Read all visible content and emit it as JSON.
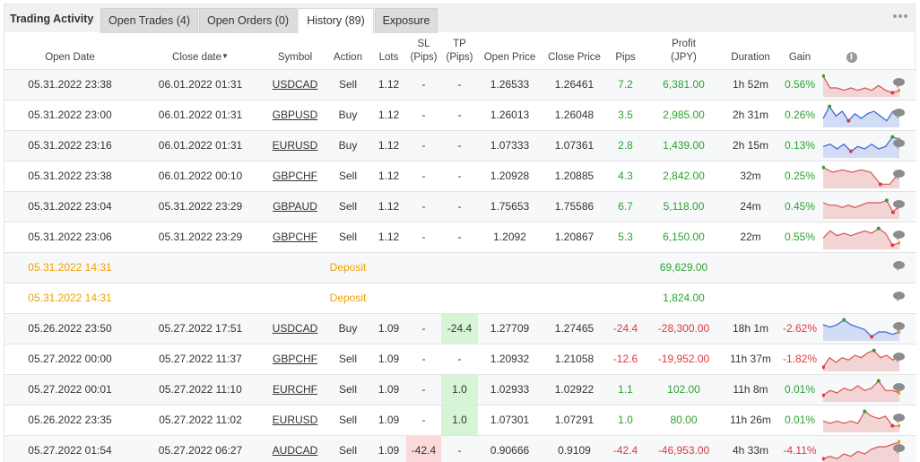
{
  "tabs": {
    "title": "Trading Activity",
    "items": [
      {
        "label": "Open Trades (4)"
      },
      {
        "label": "Open Orders (0)"
      },
      {
        "label": "History (89)"
      },
      {
        "label": "Exposure"
      }
    ],
    "active_index": 2
  },
  "headers": {
    "open_date": "Open Date",
    "close_date": "Close date",
    "symbol": "Symbol",
    "action": "Action",
    "lots": "Lots",
    "sl_1": "SL",
    "sl_2": "(Pips)",
    "tp_1": "TP",
    "tp_2": "(Pips)",
    "open_price": "Open Price",
    "close_price": "Close Price",
    "pips": "Pips",
    "profit_1": "Profit",
    "profit_2": "(JPY)",
    "duration": "Duration",
    "gain": "Gain",
    "info_glyph": "i"
  },
  "colors": {
    "profit_positive": "#2da12f",
    "profit_negative": "#e0383e",
    "deposit": "#f0a000",
    "spark_red_line": "#d9534f",
    "spark_red_fill": "#f2d4d4",
    "spark_blue_line": "#3b5fd6",
    "spark_blue_fill": "#d3dcf5"
  },
  "rows": [
    {
      "type": "trade",
      "open_date": "05.31.2022 23:38",
      "close_date": "06.01.2022 01:31",
      "symbol": "USDCAD",
      "action": "Sell",
      "lots": "1.12",
      "sl": "-",
      "tp": "-",
      "open_price": "1.26533",
      "close_price": "1.26461",
      "pips": "7.2",
      "profit": "6,381.00",
      "duration": "1h 52m",
      "gain": "0.56%",
      "positive": true,
      "spark": {
        "color": "red",
        "values": [
          8,
          3,
          3,
          2,
          3,
          2,
          3,
          2,
          4,
          2,
          1,
          2
        ]
      }
    },
    {
      "type": "trade",
      "open_date": "05.31.2022 23:00",
      "close_date": "06.01.2022 01:31",
      "symbol": "GBPUSD",
      "action": "Buy",
      "lots": "1.12",
      "sl": "-",
      "tp": "-",
      "open_price": "1.26013",
      "close_price": "1.26048",
      "pips": "3.5",
      "profit": "2,985.00",
      "duration": "2h 31m",
      "gain": "0.26%",
      "positive": true,
      "spark": {
        "color": "blue",
        "values": [
          3,
          8,
          4,
          6,
          2,
          5,
          3,
          5,
          6,
          4,
          2,
          6,
          6
        ]
      }
    },
    {
      "type": "trade",
      "open_date": "05.31.2022 23:16",
      "close_date": "06.01.2022 01:31",
      "symbol": "EURUSD",
      "action": "Buy",
      "lots": "1.12",
      "sl": "-",
      "tp": "-",
      "open_price": "1.07333",
      "close_price": "1.07361",
      "pips": "2.8",
      "profit": "1,439.00",
      "duration": "2h 15m",
      "gain": "0.13%",
      "positive": true,
      "spark": {
        "color": "blue",
        "values": [
          4,
          5,
          3,
          5,
          2,
          4,
          3,
          5,
          3,
          4,
          8,
          7
        ]
      }
    },
    {
      "type": "trade",
      "open_date": "05.31.2022 23:38",
      "close_date": "06.01.2022 00:10",
      "symbol": "GBPCHF",
      "action": "Sell",
      "lots": "1.12",
      "sl": "-",
      "tp": "-",
      "open_price": "1.20928",
      "close_price": "1.20885",
      "pips": "4.3",
      "profit": "2,842.00",
      "duration": "32m",
      "gain": "0.25%",
      "positive": true,
      "spark": {
        "color": "red",
        "values": [
          8,
          6,
          7,
          6,
          7,
          6,
          1,
          1,
          6
        ]
      }
    },
    {
      "type": "trade",
      "open_date": "05.31.2022 23:04",
      "close_date": "05.31.2022 23:29",
      "symbol": "GBPAUD",
      "action": "Sell",
      "lots": "1.12",
      "sl": "-",
      "tp": "-",
      "open_price": "1.75653",
      "close_price": "1.75586",
      "pips": "6.7",
      "profit": "5,118.00",
      "duration": "24m",
      "gain": "0.45%",
      "positive": true,
      "spark": {
        "color": "red",
        "values": [
          6,
          5,
          5,
          4,
          5,
          4,
          5,
          6,
          6,
          6,
          7,
          2,
          5
        ]
      }
    },
    {
      "type": "trade",
      "open_date": "05.31.2022 23:06",
      "close_date": "05.31.2022 23:29",
      "symbol": "GBPCHF",
      "action": "Sell",
      "lots": "1.12",
      "sl": "-",
      "tp": "-",
      "open_price": "1.2092",
      "close_price": "1.20867",
      "pips": "5.3",
      "profit": "6,150.00",
      "duration": "22m",
      "gain": "0.55%",
      "positive": true,
      "spark": {
        "color": "red",
        "values": [
          4,
          7,
          5,
          6,
          5,
          6,
          7,
          6,
          8,
          6,
          1,
          2
        ]
      }
    },
    {
      "type": "deposit",
      "open_date": "05.31.2022 14:31",
      "action": "Deposit",
      "profit": "69,629.00"
    },
    {
      "type": "deposit",
      "open_date": "05.31.2022 14:31",
      "action": "Deposit",
      "profit": "1,824.00"
    },
    {
      "type": "trade",
      "open_date": "05.26.2022 23:50",
      "close_date": "05.27.2022 17:51",
      "symbol": "USDCAD",
      "action": "Buy",
      "lots": "1.09",
      "sl": "-",
      "tp": "-24.4",
      "tp_hl": "green",
      "open_price": "1.27709",
      "close_price": "1.27465",
      "pips": "-24.4",
      "profit": "-28,300.00",
      "duration": "18h 1m",
      "gain": "-2.62%",
      "positive": false,
      "spark": {
        "color": "blue",
        "values": [
          6,
          5,
          6,
          8,
          6,
          5,
          4,
          1,
          3,
          3,
          2,
          3
        ]
      }
    },
    {
      "type": "trade",
      "open_date": "05.27.2022 00:00",
      "close_date": "05.27.2022 11:37",
      "symbol": "GBPCHF",
      "action": "Sell",
      "lots": "1.09",
      "sl": "-",
      "tp": "-",
      "open_price": "1.20932",
      "close_price": "1.21058",
      "pips": "-12.6",
      "profit": "-19,952.00",
      "duration": "11h 37m",
      "gain": "-1.82%",
      "positive": false,
      "spark": {
        "color": "red",
        "values": [
          1,
          5,
          3,
          5,
          4,
          6,
          5,
          7,
          8,
          5,
          6,
          4,
          6
        ]
      }
    },
    {
      "type": "trade",
      "open_date": "05.27.2022 00:01",
      "close_date": "05.27.2022 11:10",
      "symbol": "EURCHF",
      "action": "Sell",
      "lots": "1.09",
      "sl": "-",
      "tp": "1.0",
      "tp_hl": "green",
      "open_price": "1.02933",
      "close_price": "1.02922",
      "pips": "1.1",
      "profit": "102.00",
      "duration": "11h 8m",
      "gain": "0.01%",
      "positive": true,
      "spark": {
        "color": "red",
        "values": [
          2,
          4,
          3,
          5,
          4,
          6,
          4,
          5,
          8,
          4,
          4,
          3
        ]
      }
    },
    {
      "type": "trade",
      "open_date": "05.26.2022 23:35",
      "close_date": "05.27.2022 11:02",
      "symbol": "EURUSD",
      "action": "Sell",
      "lots": "1.09",
      "sl": "-",
      "tp": "1.0",
      "tp_hl": "green",
      "open_price": "1.07301",
      "close_price": "1.07291",
      "pips": "1.0",
      "profit": "80.00",
      "duration": "11h 26m",
      "gain": "0.01%",
      "positive": true,
      "spark": {
        "color": "red",
        "values": [
          4,
          3,
          4,
          3,
          4,
          3,
          8,
          6,
          5,
          6,
          2,
          2
        ]
      }
    },
    {
      "type": "trade",
      "open_date": "05.27.2022 01:54",
      "close_date": "05.27.2022 06:27",
      "symbol": "AUDCAD",
      "action": "Sell",
      "lots": "1.09",
      "sl": "-42.4",
      "sl_hl": "red",
      "tp": "-",
      "open_price": "0.90666",
      "close_price": "0.9109",
      "pips": "-42.4",
      "profit": "-46,953.00",
      "duration": "4h 33m",
      "gain": "-4.11%",
      "positive": false,
      "spark": {
        "color": "red",
        "values": [
          1,
          2,
          1,
          3,
          2,
          4,
          3,
          5,
          6,
          6,
          7,
          8
        ]
      }
    }
  ]
}
